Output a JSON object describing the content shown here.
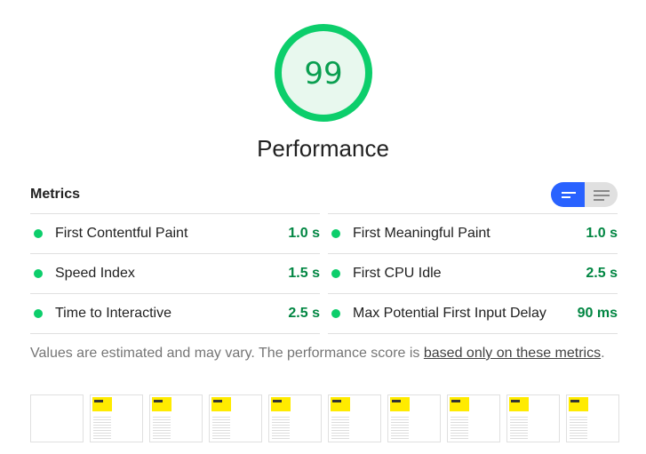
{
  "score": {
    "value": "99",
    "fraction": 0.99,
    "color": "#0cce6b",
    "fill": "#e8f8ee",
    "text_color": "#0a9e50"
  },
  "category": {
    "title": "Performance"
  },
  "metrics": {
    "heading": "Metrics",
    "view_toggle": {
      "options": [
        "list-view-icon",
        "text-view-icon"
      ],
      "active": "list-view-icon",
      "accent": "#2962ff"
    },
    "items": [
      {
        "label": "First Contentful Paint",
        "value": "1.0 s"
      },
      {
        "label": "First Meaningful Paint",
        "value": "1.0 s"
      },
      {
        "label": "Speed Index",
        "value": "1.5 s"
      },
      {
        "label": "First CPU Idle",
        "value": "2.5 s"
      },
      {
        "label": "Time to Interactive",
        "value": "2.5 s"
      },
      {
        "label": "Max Potential First Input Delay",
        "value": "90 ms"
      }
    ]
  },
  "note": {
    "text": "Values are estimated and may vary. The performance score is ",
    "link": "based only on these metrics",
    "end": "."
  },
  "filmstrip": {
    "frames": [
      {
        "blank": true
      },
      {
        "blank": false
      },
      {
        "blank": false
      },
      {
        "blank": false
      },
      {
        "blank": false
      },
      {
        "blank": false
      },
      {
        "blank": false
      },
      {
        "blank": false
      },
      {
        "blank": false
      },
      {
        "blank": false
      }
    ]
  }
}
